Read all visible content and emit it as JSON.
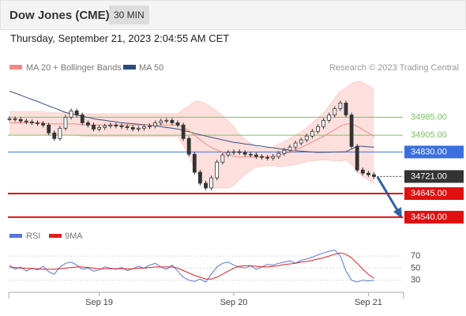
{
  "header": {
    "title": "Dow Jones (CME)",
    "timeframe": "30 MIN",
    "timestamp": "Thursday, September 21, 2023 2:04:55 AM CET"
  },
  "chart_data": [
    {
      "type": "candlestick",
      "source": "Research © 2023 Trading Central",
      "categories": [
        null,
        null,
        null,
        null,
        null,
        null,
        null,
        null,
        null,
        null,
        null,
        null,
        null,
        null,
        null,
        null,
        "Sep 19",
        null,
        null,
        null,
        null,
        null,
        null,
        null,
        null,
        null,
        null,
        null,
        null,
        null,
        null,
        null,
        null,
        null,
        null,
        null,
        null,
        null,
        null,
        null,
        "Sep 20",
        null,
        null,
        null,
        null,
        null,
        null,
        null,
        null,
        null,
        null,
        null,
        null,
        null,
        null,
        null,
        null,
        null,
        null,
        null,
        null,
        null,
        null,
        null,
        "Sep 21",
        null
      ],
      "close": [
        34978,
        34975,
        34968,
        34964,
        34960,
        34957,
        34950,
        34915,
        34890,
        34936,
        34985,
        35013,
        34995,
        34960,
        34950,
        34932,
        34939,
        34946,
        34950,
        34946,
        34943,
        34939,
        34932,
        34936,
        34943,
        34946,
        34960,
        34968,
        34971,
        34960,
        34950,
        34890,
        34820,
        34740,
        34691,
        34670,
        34715,
        34785,
        34817,
        34828,
        34831,
        34828,
        34820,
        34817,
        34810,
        34806,
        34803,
        34810,
        34824,
        34838,
        34852,
        34870,
        34884,
        34901,
        34922,
        34943,
        34971,
        34995,
        35023,
        35048,
        34995,
        34855,
        34750,
        34736,
        34729,
        34721
      ],
      "series": [
        {
          "name": "MA 50",
          "color": "#3a4f80",
          "values": [
            35101,
            35092,
            35083,
            35073,
            35064,
            35055,
            35045,
            35035,
            35026,
            35016,
            35006,
            35000,
            34995,
            34989,
            34984,
            34978,
            34974,
            34971,
            34967,
            34964,
            34960,
            34958,
            34956,
            34954,
            34952,
            34950,
            34946,
            34943,
            34939,
            34936,
            34932,
            34926,
            34920,
            34913,
            34907,
            34901,
            34895,
            34890,
            34884,
            34879,
            34873,
            34870,
            34866,
            34863,
            34859,
            34856,
            34852,
            34849,
            34845,
            34842,
            34838,
            34836,
            34834,
            34832,
            34830,
            34828,
            34829,
            34829,
            34830,
            34830,
            34831,
            34843,
            34856,
            34855,
            34853,
            34852
          ]
        },
        {
          "name": "MA 20 + Bollinger Bands",
          "color": "#f08a80",
          "values": [
            34960,
            34960,
            34960,
            34960,
            34960,
            34960,
            34960,
            34955,
            34955,
            34955,
            34955,
            34955,
            34955,
            34950,
            34950,
            34950,
            34950,
            34950,
            34950,
            34950,
            34950,
            34950,
            34950,
            34950,
            34950,
            34950,
            34950,
            34950,
            34950,
            34950,
            34950,
            34940,
            34925,
            34905,
            34885,
            34865,
            34850,
            34840,
            34830,
            34820,
            34812,
            34808,
            34808,
            34808,
            34808,
            34808,
            34808,
            34810,
            34815,
            34822,
            34830,
            34840,
            34850,
            34862,
            34875,
            34888,
            34900,
            34915,
            34930,
            34945,
            34955,
            34955,
            34945,
            34930,
            34915,
            34900
          ],
          "upper": [
            35010,
            35010,
            35010,
            35010,
            35010,
            35010,
            35010,
            35005,
            35005,
            35005,
            35005,
            35005,
            35005,
            35000,
            35000,
            35000,
            35000,
            35000,
            35000,
            35000,
            35000,
            35000,
            35000,
            35000,
            35000,
            35000,
            35000,
            35000,
            35000,
            35000,
            35000,
            35020,
            35035,
            35055,
            35055,
            35045,
            35030,
            35010,
            34990,
            34970,
            34942,
            34908,
            34888,
            34868,
            34853,
            34848,
            34848,
            34850,
            34865,
            34877,
            34890,
            34905,
            34920,
            34937,
            34960,
            34983,
            35005,
            35035,
            35070,
            35100,
            35115,
            35135,
            35145,
            35140,
            35125,
            35110
          ],
          "lower": [
            34910,
            34910,
            34910,
            34910,
            34910,
            34910,
            34910,
            34905,
            34905,
            34905,
            34905,
            34905,
            34905,
            34900,
            34900,
            34900,
            34900,
            34900,
            34900,
            34900,
            34900,
            34900,
            34900,
            34900,
            34900,
            34900,
            34900,
            34900,
            34900,
            34900,
            34900,
            34860,
            34815,
            34755,
            34715,
            34685,
            34670,
            34670,
            34670,
            34670,
            34682,
            34708,
            34728,
            34748,
            34763,
            34768,
            34768,
            34770,
            34765,
            34767,
            34770,
            34775,
            34780,
            34787,
            34790,
            34793,
            34795,
            34795,
            34790,
            34790,
            34795,
            34775,
            34745,
            34720,
            34705,
            34690
          ]
        }
      ],
      "band_color": "#fde0dd",
      "ylim": [
        34515,
        35155
      ],
      "levels": [
        {
          "value": 34985,
          "label": "34985.00",
          "color": "#7cc160",
          "boxed": false
        },
        {
          "value": 34905,
          "label": "34905.00",
          "color": "#7cc160",
          "boxed": false
        },
        {
          "value": 34830,
          "label": "34830.00",
          "color": "#3a6fe0",
          "boxed": true
        },
        {
          "value": 34721,
          "label": "34721.00",
          "color": "#333333",
          "boxed": true
        },
        {
          "value": 34645,
          "label": "34645.00",
          "color": "#e01010",
          "boxed": true
        },
        {
          "value": 34540,
          "label": "34540.00",
          "color": "#e01010",
          "boxed": true
        }
      ]
    },
    {
      "type": "line",
      "series": [
        {
          "name": "RSI",
          "color": "#5577dd",
          "values": [
            55,
            48,
            52,
            45,
            50,
            47,
            53,
            44,
            40,
            52,
            58,
            60,
            55,
            48,
            50,
            45,
            47,
            52,
            50,
            48,
            51,
            46,
            49,
            53,
            50,
            55,
            58,
            52,
            48,
            55,
            45,
            35,
            30,
            28,
            32,
            27,
            40,
            52,
            58,
            60,
            55,
            52,
            50,
            54,
            48,
            52,
            56,
            55,
            58,
            60,
            62,
            58,
            63,
            65,
            68,
            72,
            75,
            78,
            80,
            70,
            45,
            30,
            27,
            30,
            29,
            30
          ]
        },
        {
          "name": "9MA",
          "color": "#e02020",
          "values": [
            52,
            51,
            50,
            50,
            49,
            49,
            48,
            48,
            48,
            49,
            50,
            51,
            52,
            52,
            51,
            50,
            49,
            49,
            49,
            49,
            49,
            49,
            49,
            50,
            50,
            51,
            52,
            52,
            52,
            52,
            50,
            46,
            42,
            38,
            35,
            32,
            32,
            35,
            40,
            45,
            50,
            53,
            54,
            54,
            53,
            52,
            52,
            53,
            54,
            56,
            57,
            58,
            60,
            61,
            63,
            65,
            67,
            70,
            73,
            75,
            73,
            67,
            58,
            48,
            40,
            33
          ]
        }
      ],
      "ylim": [
        10,
        95
      ],
      "yticks": [
        70,
        50,
        30
      ]
    }
  ]
}
